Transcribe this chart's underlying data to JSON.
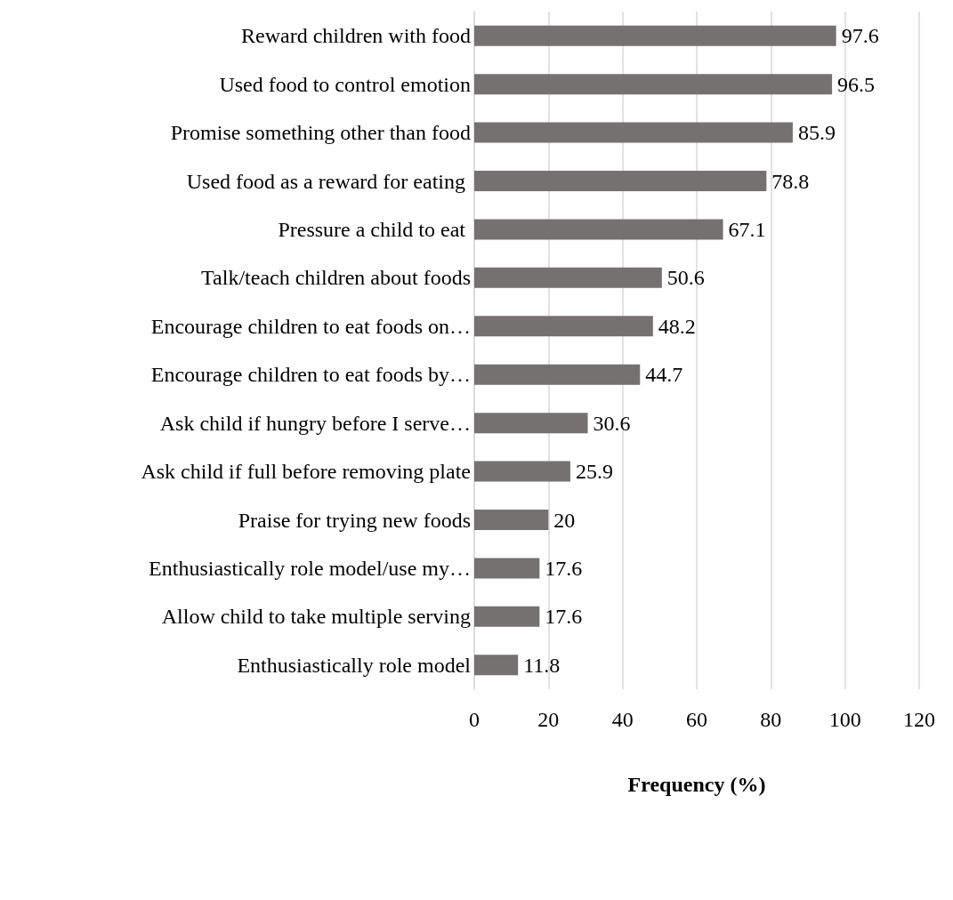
{
  "chart_data": {
    "type": "bar",
    "orientation": "horizontal",
    "xlabel": "Frequency (%)",
    "categories": [
      "Reward children with food",
      "Used food to control emotion",
      "Promise something other than food",
      "Used food as a reward for eating ",
      "Pressure a child to eat ",
      "Talk/teach children about foods",
      "Encourage children to eat foods on…",
      "Encourage children to eat foods by…",
      "Ask child if hungry before I serve…",
      "Ask child if full before removing plate",
      "Praise for trying new foods",
      "Enthusiastically role model/use my…",
      "Allow child to take multiple serving",
      "Enthusiastically role model"
    ],
    "values": [
      97.6,
      96.5,
      85.9,
      78.8,
      67.1,
      50.6,
      48.2,
      44.7,
      30.6,
      25.9,
      20,
      17.6,
      17.6,
      11.8
    ],
    "color": "#767171",
    "xlim": [
      0,
      120
    ],
    "xticks": [
      0,
      20,
      40,
      60,
      80,
      100,
      120
    ],
    "grid": "x",
    "data_labels": true
  }
}
